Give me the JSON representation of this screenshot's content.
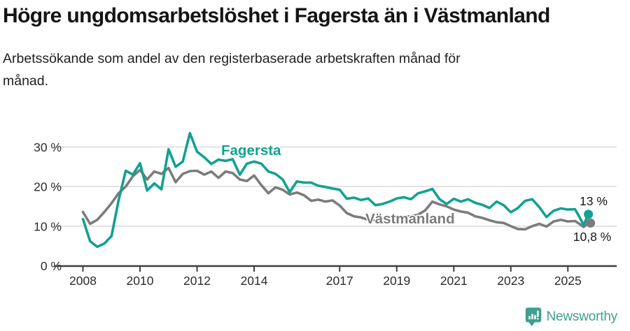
{
  "header": {
    "title": "Högre ungdomsarbetslöshet i Fagersta än i Västmanland",
    "subtitle_line1": "Arbetssökande som andel av den registerbaserade arbetskraften månad för",
    "subtitle_line2": "månad."
  },
  "footer": {
    "brand": "Newsworthy"
  },
  "colors": {
    "fagersta": "#12a192",
    "vastmanland": "#7c7c7c",
    "grid": "#d9d9d9",
    "axis": "#3f3f3f",
    "text": "#161616",
    "brand": "#3f9f8e",
    "background": "#ffffff"
  },
  "chart_data": {
    "type": "line",
    "title": "Högre ungdomsarbetslöshet i Fagersta än i Västmanland",
    "subtitle": "Arbetssökande som andel av den registerbaserade arbetskraften månad för månad.",
    "xlabel": "",
    "ylabel": "",
    "y_unit": "%",
    "grid": "horizontal",
    "legend_position": "inline-labels",
    "xlim": [
      2007.6,
      2026.2
    ],
    "ylim": [
      0,
      35
    ],
    "x_ticks": [
      2008,
      2010,
      2012,
      2014,
      2017,
      2019,
      2021,
      2023,
      2025
    ],
    "y_ticks": [
      0,
      10,
      20,
      30
    ],
    "y_tick_suffix": " %",
    "x": [
      2008.0,
      2008.25,
      2008.5,
      2008.75,
      2009.0,
      2009.25,
      2009.5,
      2009.75,
      2010.0,
      2010.25,
      2010.5,
      2010.75,
      2011.0,
      2011.25,
      2011.5,
      2011.75,
      2012.0,
      2012.25,
      2012.5,
      2012.75,
      2013.0,
      2013.25,
      2013.5,
      2013.75,
      2014.0,
      2014.25,
      2014.5,
      2014.75,
      2015.0,
      2015.25,
      2015.5,
      2015.75,
      2016.0,
      2016.25,
      2016.5,
      2016.75,
      2017.0,
      2017.25,
      2017.5,
      2017.75,
      2018.0,
      2018.25,
      2018.5,
      2018.75,
      2019.0,
      2019.25,
      2019.5,
      2019.75,
      2020.0,
      2020.25,
      2020.5,
      2020.75,
      2021.0,
      2021.25,
      2021.5,
      2021.75,
      2022.0,
      2022.25,
      2022.5,
      2022.75,
      2023.0,
      2023.25,
      2023.5,
      2023.75,
      2024.0,
      2024.25,
      2024.5,
      2024.75,
      2025.0,
      2025.25,
      2025.4,
      2025.55,
      2025.72
    ],
    "series": [
      {
        "id": "fagersta",
        "name": "Fagersta",
        "color": "#12a192",
        "end_label": "13 %",
        "end_value": 13.0,
        "values": [
          11.8,
          6.2,
          4.8,
          5.6,
          7.5,
          16.5,
          24.0,
          23.0,
          25.9,
          19.0,
          20.8,
          19.3,
          29.4,
          25.0,
          26.3,
          33.5,
          28.8,
          27.4,
          25.7,
          26.8,
          26.5,
          26.9,
          23.0,
          25.8,
          26.3,
          25.8,
          23.8,
          23.2,
          21.8,
          18.6,
          21.3,
          21.0,
          21.0,
          20.2,
          19.9,
          19.5,
          19.2,
          16.9,
          17.2,
          16.6,
          17.0,
          15.3,
          15.6,
          16.2,
          17.0,
          17.3,
          16.8,
          18.3,
          18.8,
          19.4,
          16.8,
          15.6,
          16.9,
          16.2,
          16.8,
          15.9,
          15.4,
          14.6,
          16.2,
          15.3,
          13.5,
          14.6,
          16.4,
          16.8,
          14.8,
          12.3,
          13.9,
          14.5,
          14.2,
          14.3,
          12.4,
          10.3,
          13.0
        ]
      },
      {
        "id": "vastmanland",
        "name": "Västmanland",
        "color": "#7c7c7c",
        "end_label": "10,8 %",
        "end_value": 10.8,
        "values": [
          13.6,
          10.6,
          11.6,
          13.6,
          15.8,
          18.3,
          20.0,
          22.6,
          24.2,
          21.8,
          23.8,
          23.2,
          24.7,
          21.1,
          23.2,
          23.9,
          24.0,
          23.0,
          23.8,
          22.2,
          23.8,
          23.4,
          21.8,
          21.4,
          22.8,
          20.4,
          18.3,
          19.8,
          19.2,
          18.0,
          18.5,
          17.8,
          16.4,
          16.7,
          16.2,
          16.5,
          15.2,
          13.3,
          12.5,
          12.2,
          11.6,
          11.5,
          11.9,
          12.1,
          12.3,
          12.4,
          12.5,
          12.9,
          14.0,
          16.2,
          15.5,
          15.0,
          14.2,
          13.7,
          13.4,
          12.5,
          12.1,
          11.5,
          11.0,
          10.8,
          10.0,
          9.3,
          9.2,
          10.0,
          10.6,
          9.9,
          11.2,
          11.6,
          11.2,
          11.3,
          10.6,
          9.8,
          10.8
        ]
      }
    ]
  }
}
